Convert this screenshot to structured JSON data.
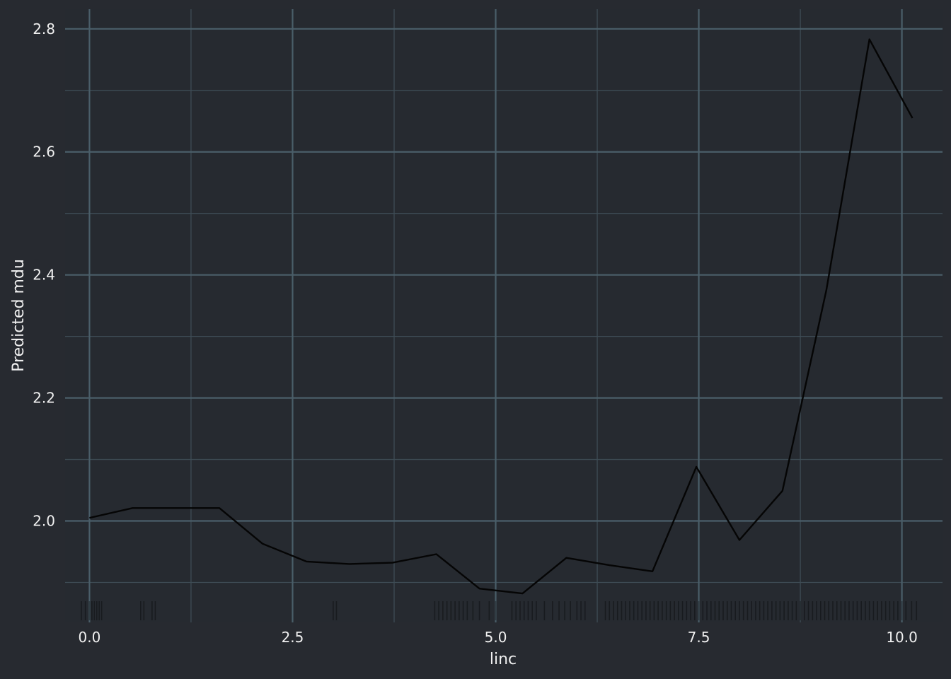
{
  "colors": {
    "background": "#272a30",
    "panel": "#262a30",
    "grid_major": "#4a5e69",
    "grid_minor": "#3e4c55",
    "line": "#050505",
    "rug": "#000000",
    "text": "#f0f0f0"
  },
  "chart_data": {
    "type": "line",
    "title": "",
    "xlabel": "linc",
    "ylabel": "Predicted mdu",
    "xlim": [
      -0.3,
      10.5
    ],
    "ylim": [
      1.835,
      2.832
    ],
    "x_ticks": [
      0.0,
      2.5,
      5.0,
      7.5,
      10.0
    ],
    "x_tick_labels": [
      "0.0",
      "2.5",
      "5.0",
      "7.5",
      "10.0"
    ],
    "y_ticks": [
      2.0,
      2.2,
      2.4,
      2.6,
      2.8
    ],
    "y_tick_labels": [
      "2.0",
      "2.2",
      "2.4",
      "2.6",
      "2.8"
    ],
    "grid": true,
    "legend": "none",
    "series": [
      {
        "x": [
          0.0,
          0.53,
          1.07,
          1.6,
          2.13,
          2.67,
          3.2,
          3.73,
          4.27,
          4.8,
          5.33,
          5.87,
          6.4,
          6.93,
          7.47,
          8.0,
          8.53,
          9.07,
          9.6,
          10.13
        ],
        "values": [
          2.005,
          2.021,
          2.021,
          2.021,
          1.963,
          1.934,
          1.93,
          1.932,
          1.946,
          1.89,
          1.882,
          1.94,
          1.928,
          1.918,
          2.088,
          1.969,
          2.049,
          2.375,
          2.783,
          2.655
        ]
      }
    ],
    "rug": {
      "axis": "x",
      "values": [
        -0.1,
        -0.05,
        0.0,
        0.03,
        0.06,
        0.09,
        0.12,
        0.15,
        0.63,
        0.67,
        0.77,
        0.81,
        3.0,
        3.04,
        4.25,
        4.3,
        4.35,
        4.4,
        4.45,
        4.5,
        4.55,
        4.6,
        4.65,
        4.72,
        4.8,
        4.92,
        5.0,
        5.2,
        5.25,
        5.3,
        5.35,
        5.4,
        5.45,
        5.5,
        5.6,
        5.7,
        5.78,
        5.85,
        5.92,
        6.0,
        6.05,
        6.1,
        6.35,
        6.4,
        6.45,
        6.5,
        6.55,
        6.6,
        6.65,
        6.7,
        6.75,
        6.8,
        6.85,
        6.9,
        6.95,
        7.0,
        7.05,
        7.1,
        7.15,
        7.2,
        7.25,
        7.3,
        7.35,
        7.4,
        7.45,
        7.5,
        7.55,
        7.6,
        7.65,
        7.7,
        7.75,
        7.8,
        7.85,
        7.9,
        7.95,
        8.0,
        8.05,
        8.1,
        8.15,
        8.2,
        8.25,
        8.3,
        8.35,
        8.4,
        8.45,
        8.5,
        8.55,
        8.6,
        8.65,
        8.7,
        8.75,
        8.8,
        8.85,
        8.9,
        8.95,
        9.0,
        9.05,
        9.1,
        9.15,
        9.2,
        9.25,
        9.3,
        9.35,
        9.4,
        9.45,
        9.5,
        9.55,
        9.6,
        9.65,
        9.7,
        9.75,
        9.8,
        9.85,
        9.9,
        9.95,
        10.0,
        10.05,
        10.12,
        10.18
      ]
    }
  }
}
